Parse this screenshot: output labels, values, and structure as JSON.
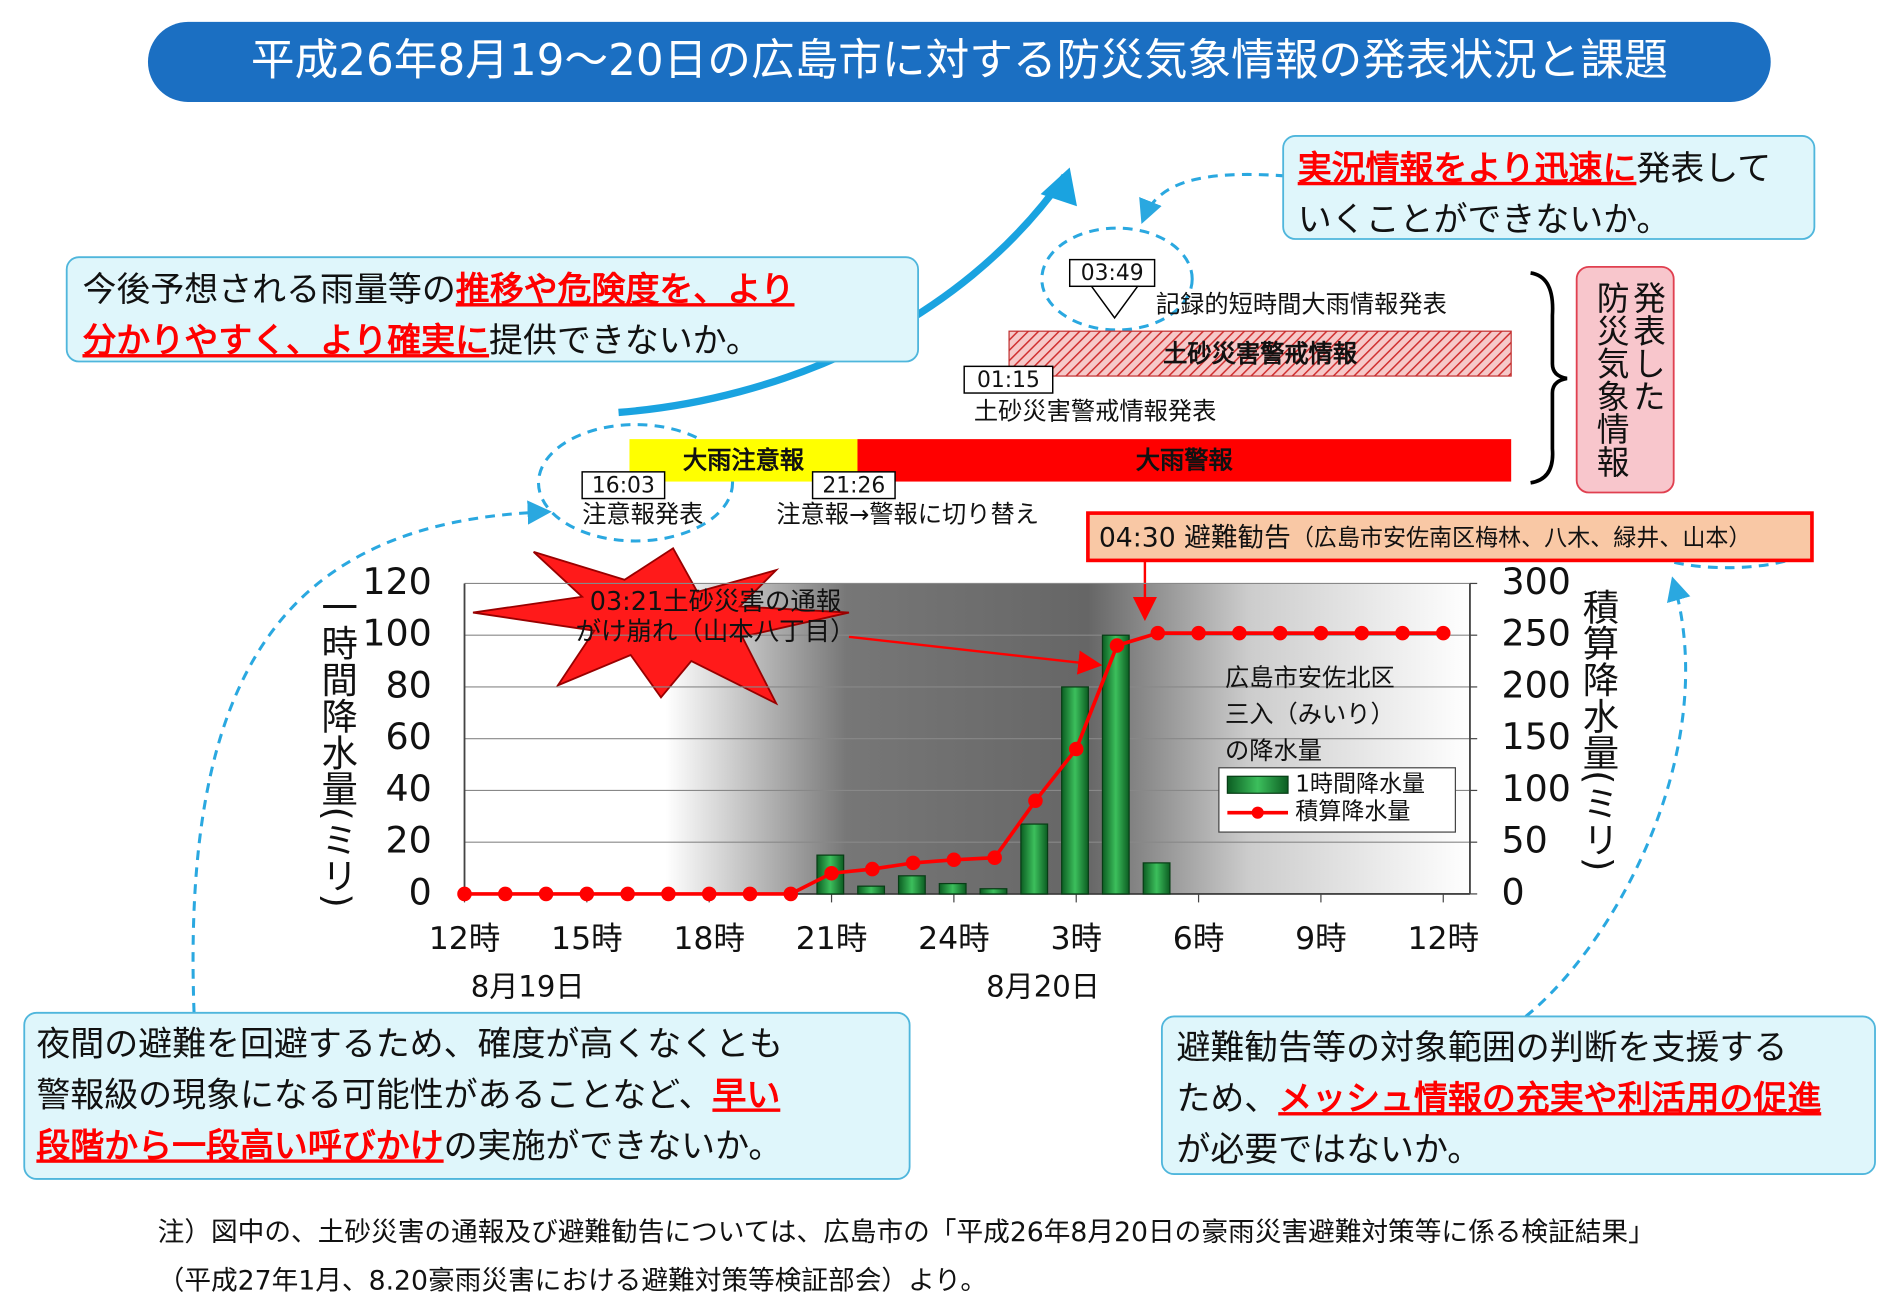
{
  "title": "平成26年8月19～20日の広島市に対する防災気象情報の発表状況と課題",
  "callouts": [
    {
      "lines": [
        [
          {
            "text": "今後予想される雨量等の"
          },
          {
            "text": "推移や危険度を、より",
            "emphasis": true
          }
        ],
        [
          {
            "text": "分かりやすく、より確実に",
            "emphasis": true
          },
          {
            "text": "提供できないか。"
          }
        ]
      ]
    },
    {
      "lines": [
        [
          {
            "text": "実況情報をより迅速に",
            "emphasis": true
          },
          {
            "text": "発表して"
          }
        ],
        [
          {
            "text": "いくことができないか。"
          }
        ]
      ]
    },
    {
      "lines": [
        [
          {
            "text": "夜間の避難を回避するため、確度が高くなくとも"
          }
        ],
        [
          {
            "text": "警報級の現象になる可能性があることなど、"
          },
          {
            "text": "早い",
            "emphasis": true
          }
        ],
        [
          {
            "text": "段階から一段高い呼びかけ",
            "emphasis": true
          },
          {
            "text": "の実施ができないか。"
          }
        ]
      ]
    },
    {
      "lines": [
        [
          {
            "text": "避難勧告等の対象範囲の判断を支援する"
          }
        ],
        [
          {
            "text": "ため、"
          },
          {
            "text": "メッシュ情報の充実や利活用の促進",
            "emphasis": true
          }
        ],
        [
          {
            "text": "が必要ではないか。"
          }
        ]
      ]
    }
  ],
  "timeline": {
    "bars": [
      {
        "name": "大雨注意報",
        "color": "#ffff00"
      },
      {
        "name": "大雨警報",
        "color": "#ff0000"
      },
      {
        "name": "土砂災害警戒情報",
        "color": "#e87070",
        "hatched": true
      }
    ],
    "events": [
      {
        "time": "16:03",
        "label": "注意報発表"
      },
      {
        "time": "21:26",
        "label": "注意報→警報に切り替え"
      },
      {
        "time": "01:15",
        "label": "土砂災害警戒情報発表"
      },
      {
        "time": "03:49",
        "label": "記録的短時間大雨情報発表"
      }
    ],
    "issued_label": [
      "発表した",
      "防災気象情報"
    ],
    "evacuation": {
      "text": "04:30 避難勧告",
      "detail": "（広島市安佐南区梅林、八木、緑井、山本）"
    }
  },
  "chart_data": {
    "type": "bar",
    "categories": [
      "12時",
      null,
      null,
      "15時",
      null,
      null,
      "18時",
      null,
      null,
      "21時",
      null,
      null,
      "24時",
      null,
      null,
      "3時",
      null,
      null,
      "6時",
      null,
      null,
      "9時",
      null,
      null,
      "12時"
    ],
    "dates": [
      "8月19日",
      "8月20日"
    ],
    "series": [
      {
        "name": "1時間降水量",
        "type": "bar",
        "color": "#1e8c3a",
        "values": [
          0,
          0,
          0,
          0,
          0,
          0,
          0,
          0,
          0,
          15,
          3,
          7,
          4,
          2,
          27,
          80,
          100,
          12,
          0,
          0,
          0,
          0,
          0,
          0,
          0
        ]
      },
      {
        "name": "積算降水量",
        "type": "line",
        "color": "#ff0000",
        "axis": "y2",
        "values": [
          0,
          0,
          0,
          0,
          0,
          0,
          0,
          0,
          0,
          20,
          24,
          30,
          33,
          35,
          90,
          140,
          240,
          252,
          252,
          252,
          252,
          252,
          252,
          252,
          252
        ]
      }
    ],
    "ylabel": "一時間降水量(ミリ)",
    "y2label": "積算降水量(ミリ)",
    "ylim": [
      0,
      120
    ],
    "yticks": [
      0,
      20,
      40,
      60,
      80,
      100,
      120
    ],
    "y2lim": [
      0,
      300
    ],
    "y2ticks": [
      0,
      50,
      100,
      150,
      200,
      250,
      300
    ],
    "grid": true,
    "location_label": [
      "広島市安佐北区",
      "三入（みいり）",
      "の降水量"
    ],
    "annotation": [
      "03:21土砂災害の通報",
      "がけ崩れ（山本八丁目）"
    ]
  },
  "note": [
    "注）図中の、土砂災害の通報及び避難勧告については、広島市の「平成26年8月20日の豪雨災害避難対策等に係る検証結果」",
    "（平成27年1月、8.20豪雨災害における避難対策等検証部会）より。"
  ]
}
